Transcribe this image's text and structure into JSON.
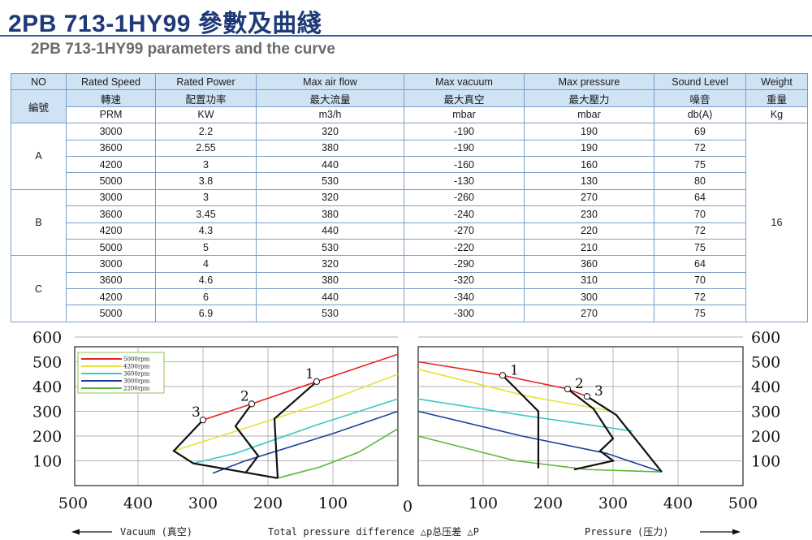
{
  "header": {
    "title": "2PB 713-1HY99 參數及曲綫",
    "subtitle": "2PB 713-1HY99 parameters and the curve"
  },
  "table": {
    "header_en": [
      "NO",
      "Rated Speed",
      "Rated Power",
      "Max air flow",
      "Max vacuum",
      "Max pressure",
      "Sound Level",
      "Weight"
    ],
    "header_zh": [
      "編號",
      "轉速",
      "配置功率",
      "最大流量",
      "最大真空",
      "最大壓力",
      "噪音",
      "重量"
    ],
    "units": [
      "PRM",
      "KW",
      "m3/h",
      "mbar",
      "mbar",
      "db(A)",
      "Kg"
    ],
    "weight": "16",
    "groups": [
      {
        "no": "A",
        "rows": [
          [
            "3000",
            "2.2",
            "320",
            "-190",
            "190",
            "69"
          ],
          [
            "3600",
            "2.55",
            "380",
            "-190",
            "190",
            "72"
          ],
          [
            "4200",
            "3",
            "440",
            "-160",
            "160",
            "75"
          ],
          [
            "5000",
            "3.8",
            "530",
            "-130",
            "130",
            "80"
          ]
        ]
      },
      {
        "no": "B",
        "rows": [
          [
            "3000",
            "3",
            "320",
            "-260",
            "270",
            "64"
          ],
          [
            "3600",
            "3.45",
            "380",
            "-240",
            "230",
            "70"
          ],
          [
            "4200",
            "4.3",
            "440",
            "-270",
            "220",
            "72"
          ],
          [
            "5000",
            "5",
            "530",
            "-220",
            "210",
            "75"
          ]
        ]
      },
      {
        "no": "C",
        "rows": [
          [
            "3000",
            "4",
            "320",
            "-290",
            "360",
            "64"
          ],
          [
            "3600",
            "4.6",
            "380",
            "-320",
            "310",
            "70"
          ],
          [
            "4200",
            "6",
            "440",
            "-340",
            "300",
            "72"
          ],
          [
            "5000",
            "6.9",
            "530",
            "-300",
            "270",
            "75"
          ]
        ]
      }
    ]
  },
  "chart_data": {
    "type": "line",
    "y_ticks": [
      "600",
      "500",
      "400",
      "300",
      "200",
      "100"
    ],
    "x_ticks_left": [
      "500",
      "400",
      "300",
      "200",
      "100"
    ],
    "x_ticks_right": [
      "100",
      "200",
      "300",
      "400",
      "500"
    ],
    "x_zero_label": "0",
    "ylim": [
      0,
      600
    ],
    "xlim_vacuum": [
      0,
      500
    ],
    "xlim_pressure": [
      0,
      500
    ],
    "legend": [
      {
        "label": "5000rpm",
        "color": "#e52424"
      },
      {
        "label": "4200rpm",
        "color": "#e6e23a"
      },
      {
        "label": "3600rpm",
        "color": "#3ec7c7"
      },
      {
        "label": "3000rpm",
        "color": "#1e3f9e"
      },
      {
        "label": "2200rpm",
        "color": "#5cb83a"
      }
    ],
    "vacuum_series": [
      {
        "color": "#e52424",
        "points": [
          [
            300,
            265
          ],
          [
            225,
            330
          ],
          [
            125,
            420
          ],
          [
            0,
            530
          ]
        ]
      },
      {
        "color": "#e6e23a",
        "points": [
          [
            345,
            140
          ],
          [
            225,
            240
          ],
          [
            120,
            330
          ],
          [
            0,
            450
          ]
        ]
      },
      {
        "color": "#3ec7c7",
        "points": [
          [
            315,
            90
          ],
          [
            250,
            130
          ],
          [
            125,
            245
          ],
          [
            0,
            350
          ]
        ]
      },
      {
        "color": "#1e3f9e",
        "points": [
          [
            285,
            50
          ],
          [
            235,
            100
          ],
          [
            100,
            210
          ],
          [
            0,
            300
          ]
        ]
      },
      {
        "color": "#5cb83a",
        "points": [
          [
            185,
            30
          ],
          [
            120,
            75
          ],
          [
            60,
            135
          ],
          [
            0,
            230
          ]
        ]
      }
    ],
    "vacuum_boundaries": [
      [
        [
          300,
          265
        ],
        [
          345,
          140
        ],
        [
          315,
          90
        ],
        [
          185,
          30
        ]
      ],
      [
        [
          225,
          330
        ],
        [
          250,
          240
        ],
        [
          215,
          120
        ],
        [
          235,
          50
        ]
      ],
      [
        [
          125,
          420
        ],
        [
          190,
          270
        ],
        [
          185,
          30
        ]
      ]
    ],
    "pressure_series": [
      {
        "color": "#e52424",
        "points": [
          [
            0,
            500
          ],
          [
            130,
            445
          ],
          [
            230,
            390
          ],
          [
            260,
            360
          ]
        ]
      },
      {
        "color": "#e6e23a",
        "points": [
          [
            0,
            470
          ],
          [
            170,
            360
          ],
          [
            300,
            300
          ]
        ]
      },
      {
        "color": "#3ec7c7",
        "points": [
          [
            0,
            350
          ],
          [
            170,
            280
          ],
          [
            330,
            220
          ]
        ]
      },
      {
        "color": "#1e3f9e",
        "points": [
          [
            0,
            300
          ],
          [
            160,
            200
          ],
          [
            290,
            130
          ],
          [
            375,
            55
          ]
        ]
      },
      {
        "color": "#5cb83a",
        "points": [
          [
            0,
            200
          ],
          [
            150,
            100
          ],
          [
            260,
            65
          ],
          [
            375,
            55
          ]
        ]
      }
    ],
    "pressure_boundaries": [
      [
        [
          130,
          445
        ],
        [
          185,
          300
        ],
        [
          185,
          70
        ]
      ],
      [
        [
          230,
          390
        ],
        [
          270,
          310
        ],
        [
          300,
          190
        ],
        [
          280,
          140
        ],
        [
          300,
          100
        ],
        [
          240,
          65
        ]
      ],
      [
        [
          260,
          360
        ],
        [
          305,
          285
        ],
        [
          375,
          55
        ]
      ]
    ],
    "point_markers": [
      {
        "side": "vacuum",
        "label": "1",
        "x": 125,
        "y": 420
      },
      {
        "side": "vacuum",
        "label": "2",
        "x": 225,
        "y": 330
      },
      {
        "side": "vacuum",
        "label": "3",
        "x": 300,
        "y": 265
      },
      {
        "side": "pressure",
        "label": "1",
        "x": 130,
        "y": 445
      },
      {
        "side": "pressure",
        "label": "2",
        "x": 230,
        "y": 390
      },
      {
        "side": "pressure",
        "label": "3",
        "x": 260,
        "y": 360
      }
    ],
    "captions": {
      "vacuum": "Vacuum (真空)",
      "pressure": "Pressure (压力)",
      "total": "Total pressure difference △p总压差 △P"
    }
  }
}
